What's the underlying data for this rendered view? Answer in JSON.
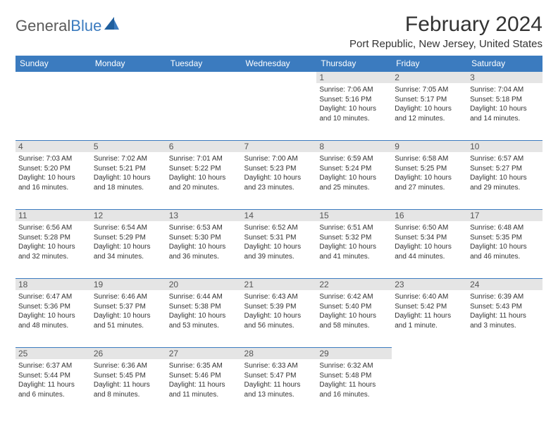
{
  "logo": {
    "text1": "General",
    "text2": "Blue"
  },
  "title": "February 2024",
  "location": "Port Republic, New Jersey, United States",
  "colors": {
    "header_bg": "#3b7bbf",
    "header_text": "#ffffff",
    "daynum_bg": "#e5e5e5",
    "rule": "#3b7bbf",
    "logo_gray": "#5a5a5a",
    "logo_blue": "#3b7bbf"
  },
  "daysOfWeek": [
    "Sunday",
    "Monday",
    "Tuesday",
    "Wednesday",
    "Thursday",
    "Friday",
    "Saturday"
  ],
  "weeks": [
    [
      null,
      null,
      null,
      null,
      {
        "n": "1",
        "sunrise": "7:06 AM",
        "sunset": "5:16 PM",
        "daylight": "10 hours and 10 minutes."
      },
      {
        "n": "2",
        "sunrise": "7:05 AM",
        "sunset": "5:17 PM",
        "daylight": "10 hours and 12 minutes."
      },
      {
        "n": "3",
        "sunrise": "7:04 AM",
        "sunset": "5:18 PM",
        "daylight": "10 hours and 14 minutes."
      }
    ],
    [
      {
        "n": "4",
        "sunrise": "7:03 AM",
        "sunset": "5:20 PM",
        "daylight": "10 hours and 16 minutes."
      },
      {
        "n": "5",
        "sunrise": "7:02 AM",
        "sunset": "5:21 PM",
        "daylight": "10 hours and 18 minutes."
      },
      {
        "n": "6",
        "sunrise": "7:01 AM",
        "sunset": "5:22 PM",
        "daylight": "10 hours and 20 minutes."
      },
      {
        "n": "7",
        "sunrise": "7:00 AM",
        "sunset": "5:23 PM",
        "daylight": "10 hours and 23 minutes."
      },
      {
        "n": "8",
        "sunrise": "6:59 AM",
        "sunset": "5:24 PM",
        "daylight": "10 hours and 25 minutes."
      },
      {
        "n": "9",
        "sunrise": "6:58 AM",
        "sunset": "5:25 PM",
        "daylight": "10 hours and 27 minutes."
      },
      {
        "n": "10",
        "sunrise": "6:57 AM",
        "sunset": "5:27 PM",
        "daylight": "10 hours and 29 minutes."
      }
    ],
    [
      {
        "n": "11",
        "sunrise": "6:56 AM",
        "sunset": "5:28 PM",
        "daylight": "10 hours and 32 minutes."
      },
      {
        "n": "12",
        "sunrise": "6:54 AM",
        "sunset": "5:29 PM",
        "daylight": "10 hours and 34 minutes."
      },
      {
        "n": "13",
        "sunrise": "6:53 AM",
        "sunset": "5:30 PM",
        "daylight": "10 hours and 36 minutes."
      },
      {
        "n": "14",
        "sunrise": "6:52 AM",
        "sunset": "5:31 PM",
        "daylight": "10 hours and 39 minutes."
      },
      {
        "n": "15",
        "sunrise": "6:51 AM",
        "sunset": "5:32 PM",
        "daylight": "10 hours and 41 minutes."
      },
      {
        "n": "16",
        "sunrise": "6:50 AM",
        "sunset": "5:34 PM",
        "daylight": "10 hours and 44 minutes."
      },
      {
        "n": "17",
        "sunrise": "6:48 AM",
        "sunset": "5:35 PM",
        "daylight": "10 hours and 46 minutes."
      }
    ],
    [
      {
        "n": "18",
        "sunrise": "6:47 AM",
        "sunset": "5:36 PM",
        "daylight": "10 hours and 48 minutes."
      },
      {
        "n": "19",
        "sunrise": "6:46 AM",
        "sunset": "5:37 PM",
        "daylight": "10 hours and 51 minutes."
      },
      {
        "n": "20",
        "sunrise": "6:44 AM",
        "sunset": "5:38 PM",
        "daylight": "10 hours and 53 minutes."
      },
      {
        "n": "21",
        "sunrise": "6:43 AM",
        "sunset": "5:39 PM",
        "daylight": "10 hours and 56 minutes."
      },
      {
        "n": "22",
        "sunrise": "6:42 AM",
        "sunset": "5:40 PM",
        "daylight": "10 hours and 58 minutes."
      },
      {
        "n": "23",
        "sunrise": "6:40 AM",
        "sunset": "5:42 PM",
        "daylight": "11 hours and 1 minute."
      },
      {
        "n": "24",
        "sunrise": "6:39 AM",
        "sunset": "5:43 PM",
        "daylight": "11 hours and 3 minutes."
      }
    ],
    [
      {
        "n": "25",
        "sunrise": "6:37 AM",
        "sunset": "5:44 PM",
        "daylight": "11 hours and 6 minutes."
      },
      {
        "n": "26",
        "sunrise": "6:36 AM",
        "sunset": "5:45 PM",
        "daylight": "11 hours and 8 minutes."
      },
      {
        "n": "27",
        "sunrise": "6:35 AM",
        "sunset": "5:46 PM",
        "daylight": "11 hours and 11 minutes."
      },
      {
        "n": "28",
        "sunrise": "6:33 AM",
        "sunset": "5:47 PM",
        "daylight": "11 hours and 13 minutes."
      },
      {
        "n": "29",
        "sunrise": "6:32 AM",
        "sunset": "5:48 PM",
        "daylight": "11 hours and 16 minutes."
      },
      null,
      null
    ]
  ],
  "labels": {
    "sunrise": "Sunrise: ",
    "sunset": "Sunset: ",
    "daylight": "Daylight: "
  }
}
